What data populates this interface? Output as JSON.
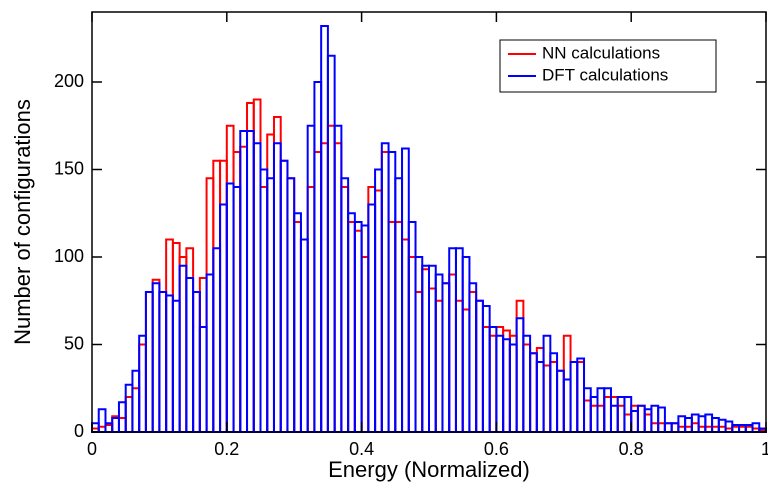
{
  "chart_data": {
    "type": "histogram",
    "xlabel": "Energy (Normalized)",
    "ylabel": "Number of configurations",
    "bins": [
      0,
      0.01,
      0.02,
      0.03,
      0.04,
      0.05,
      0.06,
      0.07,
      0.08,
      0.09,
      0.1,
      0.11,
      0.12,
      0.13,
      0.14,
      0.15,
      0.16,
      0.17,
      0.18,
      0.19,
      0.2,
      0.21,
      0.22,
      0.23,
      0.24,
      0.25,
      0.26,
      0.27,
      0.28,
      0.29,
      0.3,
      0.31,
      0.32,
      0.33,
      0.34,
      0.35,
      0.36,
      0.37,
      0.38,
      0.39,
      0.4,
      0.41,
      0.42,
      0.43,
      0.44,
      0.45,
      0.46,
      0.47,
      0.48,
      0.49,
      0.5,
      0.51,
      0.52,
      0.53,
      0.54,
      0.55,
      0.56,
      0.57,
      0.58,
      0.59,
      0.6,
      0.61,
      0.62,
      0.63,
      0.64,
      0.65,
      0.66,
      0.67,
      0.68,
      0.69,
      0.7,
      0.71,
      0.72,
      0.73,
      0.74,
      0.75,
      0.76,
      0.77,
      0.78,
      0.79,
      0.8,
      0.81,
      0.82,
      0.83,
      0.84,
      0.85,
      0.86,
      0.87,
      0.88,
      0.89,
      0.9,
      0.91,
      0.92,
      0.93,
      0.94,
      0.95,
      0.96,
      0.97,
      0.98,
      0.99,
      1
    ],
    "series": [
      {
        "name": "NN calculations",
        "color": "#ff0000",
        "values": [
          2,
          3,
          4,
          9,
          8,
          20,
          25,
          50,
          80,
          87,
          80,
          110,
          108,
          100,
          105,
          80,
          88,
          145,
          155,
          155,
          175,
          160,
          163,
          188,
          190,
          140,
          170,
          180,
          155,
          145,
          120,
          110,
          140,
          160,
          165,
          175,
          165,
          140,
          120,
          115,
          100,
          140,
          138,
          160,
          120,
          120,
          110,
          100,
          80,
          93,
          82,
          75,
          85,
          90,
          75,
          70,
          80,
          75,
          60,
          55,
          60,
          58,
          55,
          75,
          50,
          45,
          48,
          38,
          40,
          35,
          55,
          40,
          40,
          18,
          15,
          15,
          20,
          20,
          15,
          10,
          15,
          15,
          10,
          5,
          5,
          5,
          5,
          3,
          3,
          5,
          3,
          3,
          3,
          3,
          2,
          3,
          3,
          3,
          2,
          1
        ]
      },
      {
        "name": "DFT calculations",
        "color": "#0000ff",
        "values": [
          5,
          13,
          5,
          8,
          17,
          27,
          35,
          55,
          80,
          85,
          80,
          78,
          75,
          95,
          88,
          80,
          60,
          90,
          105,
          130,
          142,
          140,
          172,
          172,
          165,
          150,
          145,
          165,
          155,
          145,
          125,
          110,
          175,
          200,
          232,
          215,
          175,
          145,
          125,
          120,
          118,
          130,
          150,
          165,
          160,
          145,
          162,
          120,
          100,
          95,
          95,
          90,
          85,
          105,
          105,
          100,
          85,
          75,
          72,
          60,
          55,
          53,
          50,
          65,
          55,
          45,
          40,
          55,
          45,
          35,
          30,
          40,
          42,
          25,
          20,
          25,
          25,
          15,
          20,
          20,
          12,
          15,
          13,
          15,
          14,
          5,
          5,
          9,
          8,
          10,
          9,
          10,
          8,
          7,
          6,
          4,
          4,
          4,
          5,
          2
        ]
      }
    ],
    "xlim": [
      0,
      1
    ],
    "xticks": [
      0,
      0.2,
      0.4,
      0.6,
      0.8,
      1
    ],
    "ylim": [
      0,
      240
    ],
    "yticks": [
      0,
      50,
      100,
      150,
      200
    ],
    "legend": "upper right"
  }
}
